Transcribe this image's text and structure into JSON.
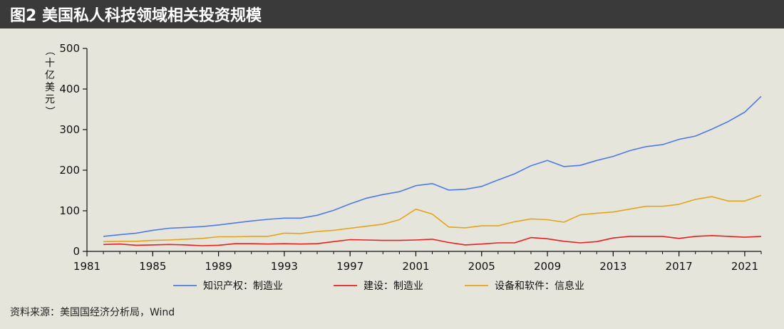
{
  "title": "图2  美国私人科技领域相关投资规模",
  "source": "资料来源：美国国经济分析局，Wind",
  "chart_data": {
    "type": "line",
    "title": "图2  美国私人科技领域相关投资规模",
    "ylabel": "（十亿美元）",
    "ylabel_chars": [
      "（",
      "十",
      "亿",
      "美",
      "元",
      "）"
    ],
    "xlabel": "",
    "xlim": [
      1981,
      2022
    ],
    "ylim": [
      0,
      500
    ],
    "x_ticks": [
      1981,
      1985,
      1989,
      1993,
      1997,
      2001,
      2005,
      2009,
      2013,
      2017,
      2021
    ],
    "y_ticks": [
      0,
      100,
      200,
      300,
      400,
      500
    ],
    "grid": false,
    "legend_position": "bottom",
    "x": [
      1982,
      1983,
      1984,
      1985,
      1986,
      1987,
      1988,
      1989,
      1990,
      1991,
      1992,
      1993,
      1994,
      1995,
      1996,
      1997,
      1998,
      1999,
      2000,
      2001,
      2002,
      2003,
      2004,
      2005,
      2006,
      2007,
      2008,
      2009,
      2010,
      2011,
      2012,
      2013,
      2014,
      2015,
      2016,
      2017,
      2018,
      2019,
      2020,
      2021,
      2022
    ],
    "series": [
      {
        "name": "知识产权：制造业",
        "color": "#4f7ae6",
        "values": [
          37,
          41,
          45,
          52,
          57,
          59,
          61,
          65,
          70,
          75,
          79,
          82,
          82,
          89,
          101,
          117,
          131,
          140,
          147,
          162,
          167,
          151,
          153,
          160,
          176,
          191,
          211,
          224,
          209,
          212,
          224,
          234,
          248,
          258,
          263,
          276,
          284,
          301,
          320,
          343,
          382
        ]
      },
      {
        "name": "建设：制造业",
        "color": "#e62020",
        "values": [
          17,
          18,
          15,
          16,
          17,
          16,
          14,
          15,
          19,
          19,
          18,
          19,
          18,
          19,
          24,
          29,
          28,
          27,
          27,
          28,
          30,
          22,
          16,
          18,
          21,
          21,
          34,
          31,
          25,
          21,
          24,
          33,
          37,
          37,
          37,
          32,
          37,
          39,
          37,
          35,
          37
        ]
      },
      {
        "name": "设备和软件：信息业",
        "color": "#e3a41c",
        "values": [
          24,
          25,
          25,
          27,
          28,
          30,
          32,
          36,
          36,
          37,
          37,
          45,
          44,
          49,
          52,
          57,
          62,
          67,
          78,
          104,
          92,
          60,
          58,
          63,
          63,
          73,
          80,
          78,
          72,
          90,
          94,
          97,
          104,
          111,
          111,
          116,
          128,
          135,
          124,
          124,
          138
        ]
      }
    ]
  }
}
